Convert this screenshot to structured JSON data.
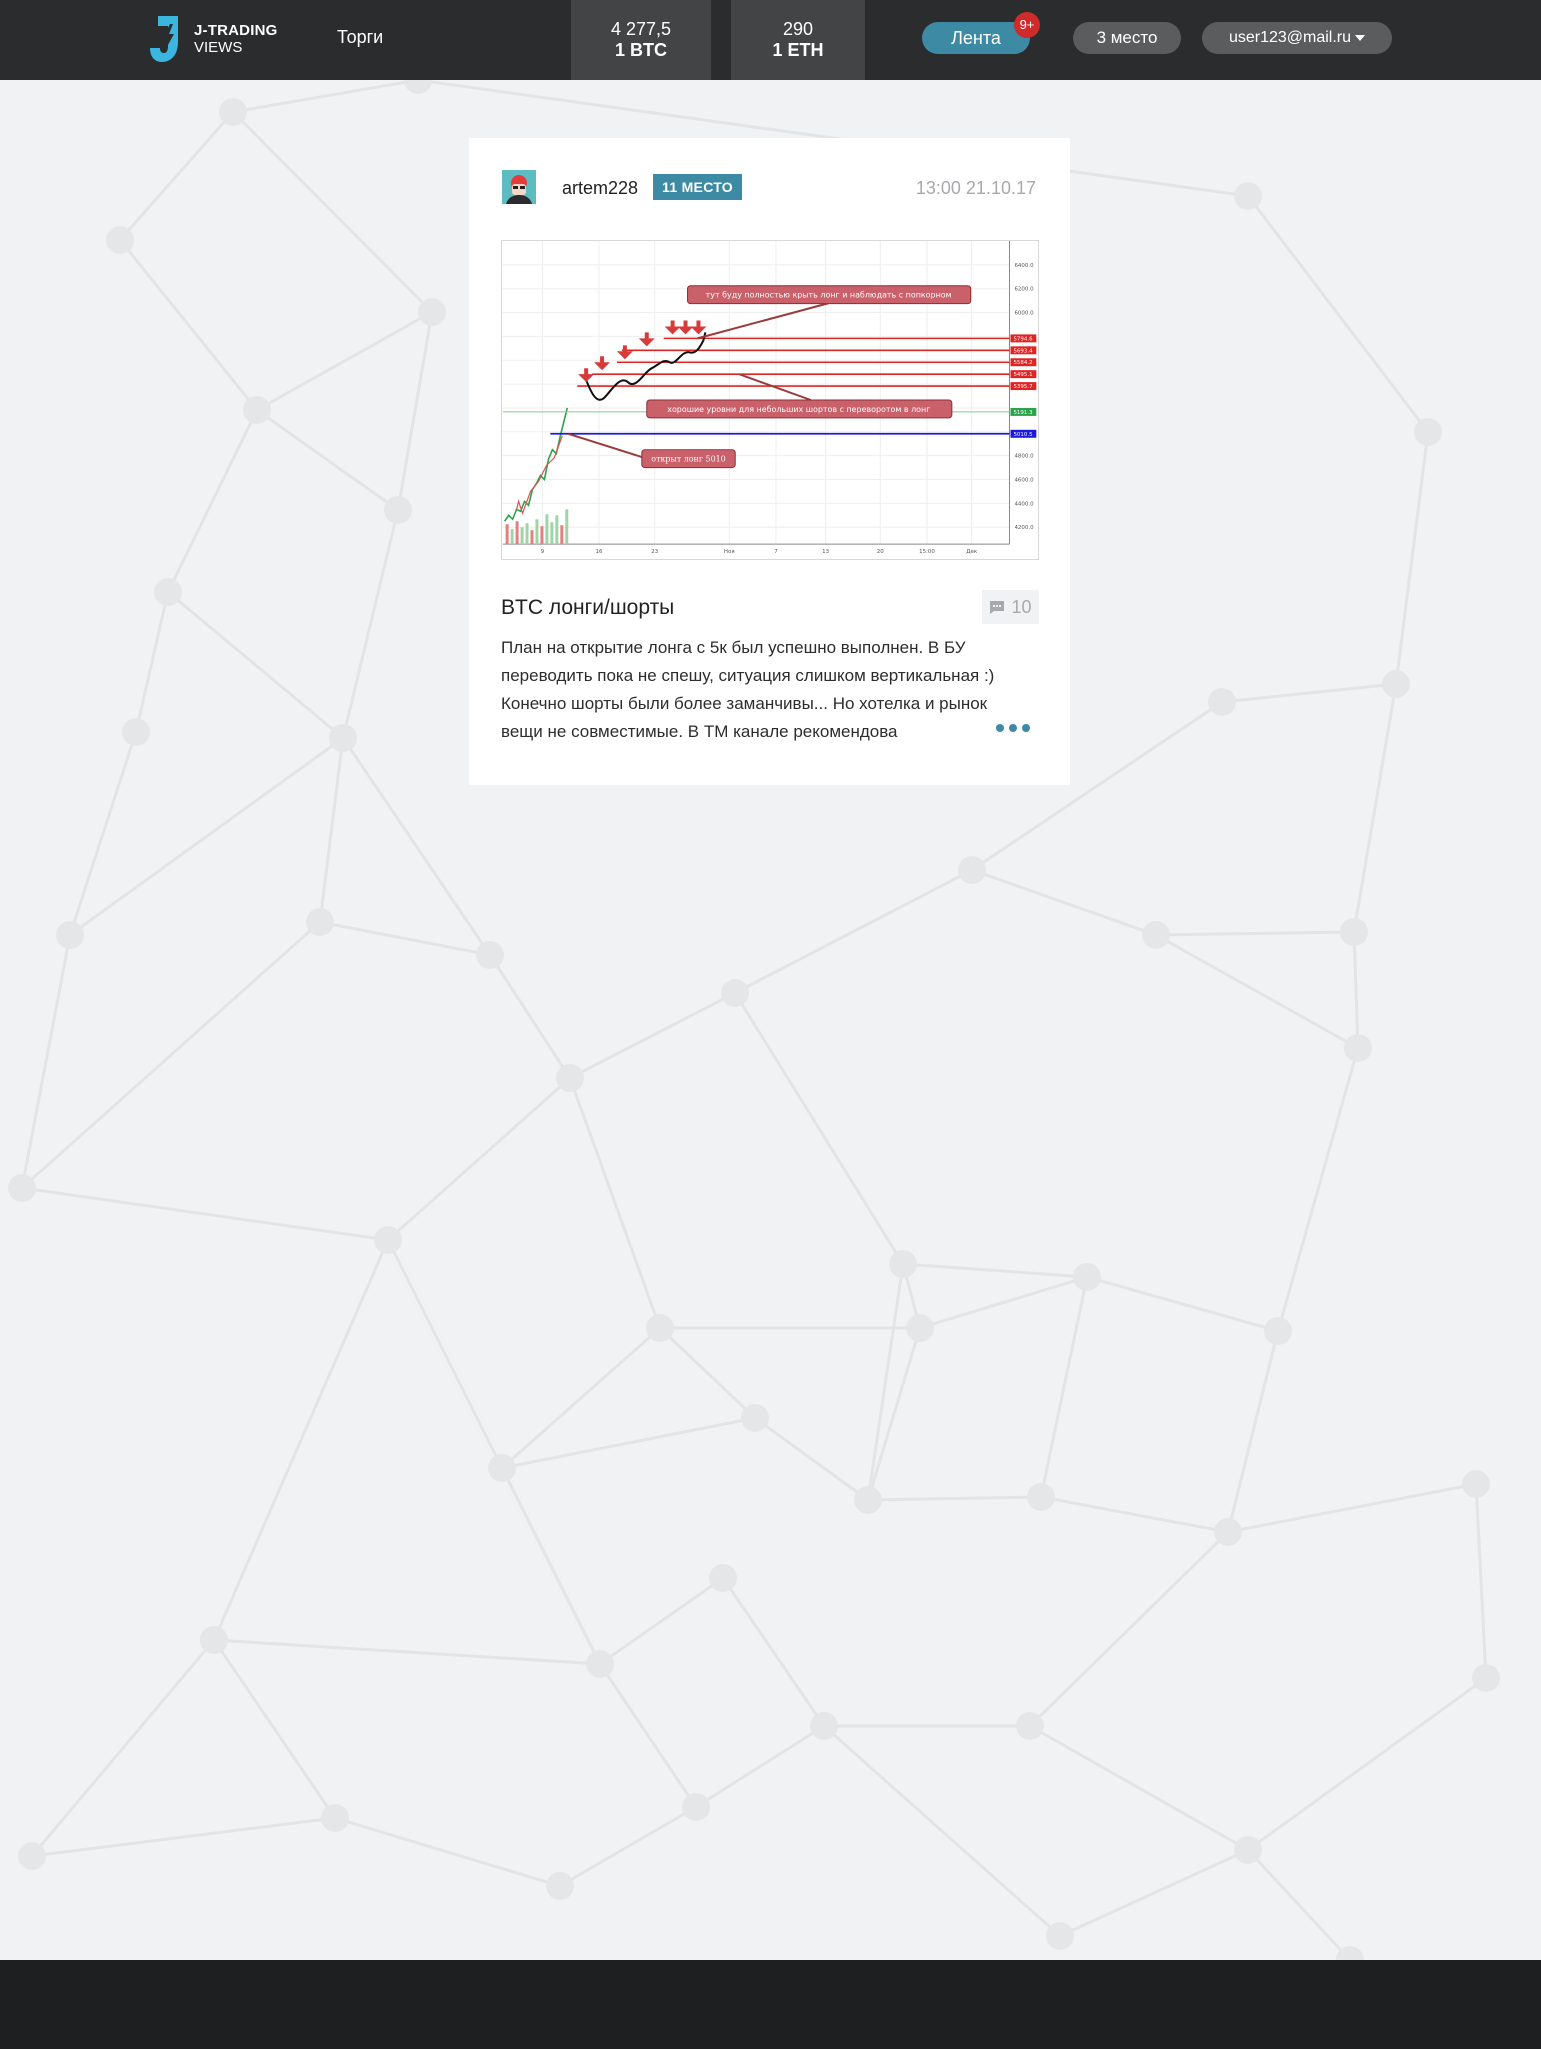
{
  "header": {
    "logo": {
      "line1": "J-TRADING",
      "line2": "VIEWS"
    },
    "nav_trades": "Торги",
    "tickers": [
      {
        "value": "4 277,5",
        "pair": "1 BTC"
      },
      {
        "value": "290",
        "pair": "1 ETH"
      }
    ],
    "feed_button": "Лента",
    "feed_badge": "9+",
    "place_button": "3 место",
    "user_menu": "user123@mail.ru"
  },
  "post": {
    "author": "artem228",
    "rank": "11 МЕСТО",
    "datetime": "13:00 21.10.17",
    "title": "BTC лонги/шорты",
    "comments_count": "10",
    "text": "План на открытие лонга с 5к был успешно выполнен. В БУ переводить пока не спешу, ситуация слишком вертикальная :) Конечно шорты были более заманчивы... Но хотелка и рынок вещи не совместимые. В ТМ канале рекомендова",
    "chart_image": {
      "annotations": [
        "тут буду полностью крыть лонг и наблюдать с попкорном",
        "хорошие уровни для небольших шортов с переворотом в лонг",
        "открыт лонг 5010"
      ],
      "y_ticks": [
        "6400.0",
        "6200.0",
        "6000.0",
        "4800.0",
        "4600.0",
        "4400.0",
        "4200.0"
      ],
      "level_labels": [
        "5794.6",
        "5693.4",
        "5584.2",
        "5495.1",
        "5395.7",
        "5191.3",
        "5010.5"
      ],
      "x_ticks": [
        "9",
        "16",
        "23",
        "Ноя",
        "7",
        "13",
        "20",
        "15:00",
        "Дек"
      ],
      "colors": {
        "resistance": "#e02424",
        "entry": "#1a1adf",
        "annotation": "#c9606a"
      }
    }
  },
  "colors": {
    "header_bg": "#2b2c2e",
    "accent": "#3d8aa5",
    "badge": "#d02b2b",
    "page_bg": "#f1f2f4",
    "footer_bg": "#1e1f21"
  }
}
